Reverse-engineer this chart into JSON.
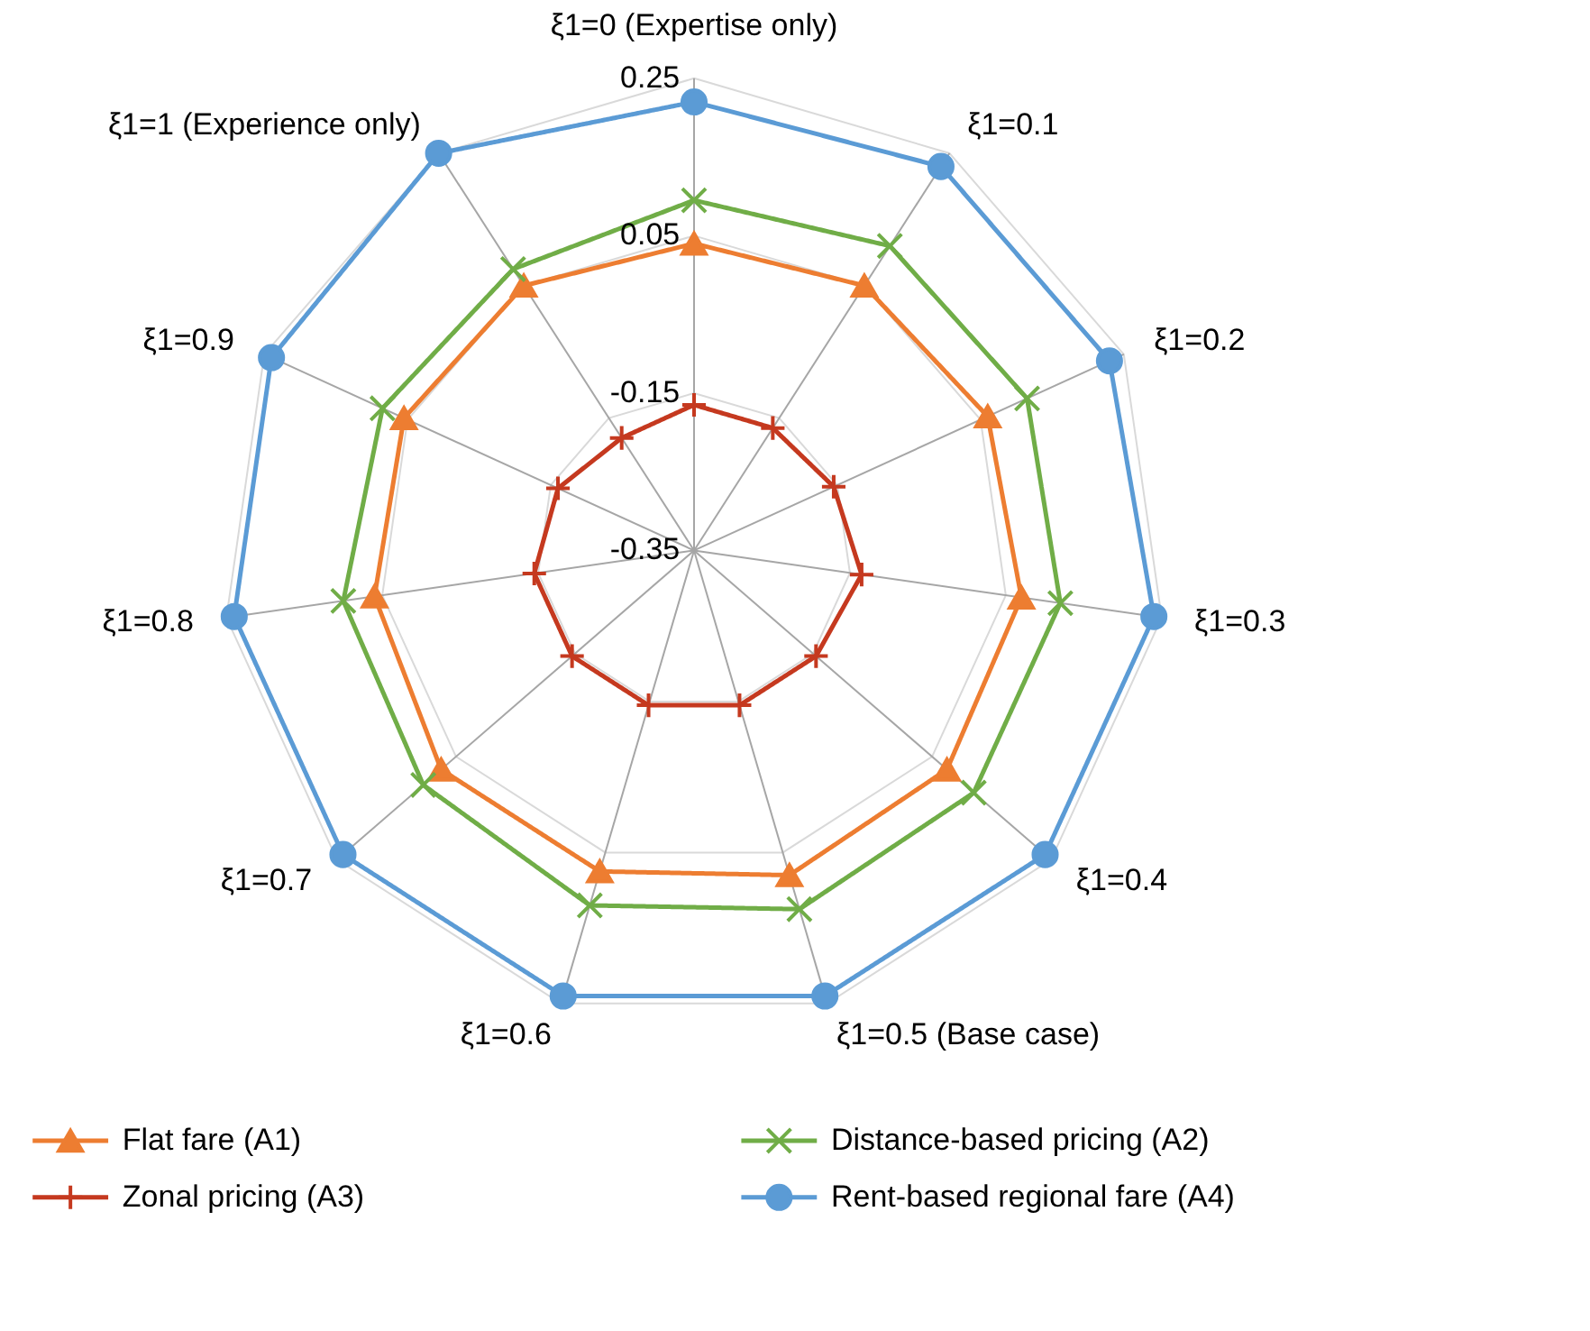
{
  "chart_data": {
    "type": "radar",
    "categories": [
      "ξ1=0 (Expertise only)",
      "ξ1=0.1",
      "ξ1=0.2",
      "ξ1=0.3",
      "ξ1=0.4",
      "ξ1=0.5 (Base case)",
      "ξ1=0.6",
      "ξ1=0.7",
      "ξ1=0.8",
      "ξ1=0.9",
      "ξ1=1 (Experience only)"
    ],
    "series": [
      {
        "name": "Flat fare (A1)",
        "color": "#ed7d31",
        "marker": "triangle",
        "values": [
          0.04,
          0.05,
          0.06,
          0.07,
          0.075,
          0.08,
          0.075,
          0.075,
          0.06,
          0.055,
          0.05
        ]
      },
      {
        "name": "Distance-based pricing (A2)",
        "color": "#70ad47",
        "marker": "cross",
        "values": [
          0.095,
          0.11,
          0.115,
          0.12,
          0.12,
          0.125,
          0.12,
          0.105,
          0.1,
          0.085,
          0.075
        ]
      },
      {
        "name": "Zonal pricing (A3)",
        "color": "#c5391f",
        "marker": "plus",
        "values": [
          -0.165,
          -0.165,
          -0.155,
          -0.135,
          -0.145,
          -0.145,
          -0.145,
          -0.145,
          -0.145,
          -0.16,
          -0.18
        ]
      },
      {
        "name": "Rent-based regional fare (A4)",
        "color": "#5b9bd5",
        "marker": "circle",
        "values": [
          0.22,
          0.23,
          0.23,
          0.24,
          0.24,
          0.24,
          0.24,
          0.24,
          0.24,
          0.24,
          0.25
        ]
      }
    ],
    "ylim": [
      -0.35,
      0.25
    ],
    "yticks": [
      -0.35,
      -0.15,
      0.05,
      0.25
    ],
    "grid": true,
    "legend": "bottom",
    "line_style": "solid"
  }
}
